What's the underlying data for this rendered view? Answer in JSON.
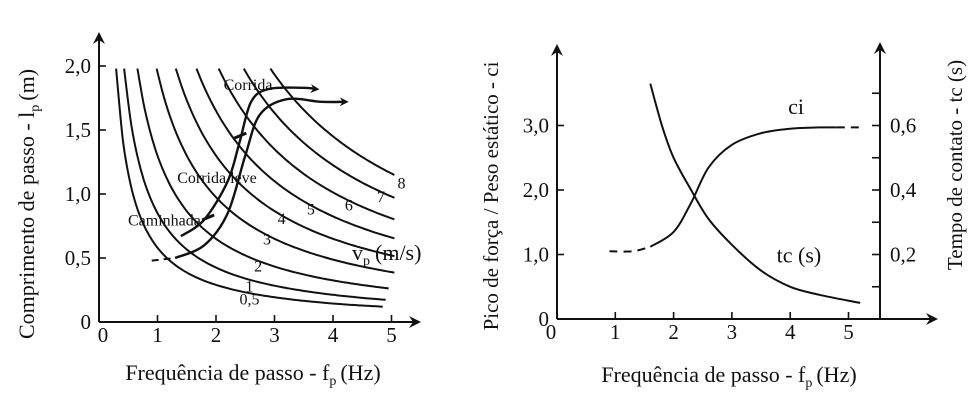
{
  "chart_data": [
    {
      "type": "line",
      "xlabel_main": "Frequência de passo - f",
      "xlabel_sub": "p",
      "xlabel_unit": "(Hz)",
      "ylabel_main": "Comprimento de passo - l",
      "ylabel_sub": "p",
      "ylabel_unit": "(m)",
      "xlim": [
        0,
        5.3
      ],
      "ylim": [
        0,
        2.1
      ],
      "x_ticks": [
        0,
        1,
        2,
        3,
        4,
        5
      ],
      "y_ticks": [
        0,
        0.5,
        1.0,
        1.5,
        2.0
      ],
      "x_tick_labels": [
        "0",
        "1",
        "2",
        "3",
        "4",
        "5"
      ],
      "y_tick_labels": [
        "0",
        "0,5",
        "1,0",
        "1,5",
        "2,0"
      ],
      "speed_legend_main": "v",
      "speed_legend_sub": "p",
      "speed_legend_unit": "(m/s)",
      "speed_curves": [
        {
          "label": "0,5",
          "v": 0.5
        },
        {
          "label": "1",
          "v": 1
        },
        {
          "label": "2",
          "v": 2
        },
        {
          "label": "3",
          "v": 3
        },
        {
          "label": "4",
          "v": 4
        },
        {
          "label": "5",
          "v": 5
        },
        {
          "label": "6",
          "v": 6
        },
        {
          "label": "7",
          "v": 7
        },
        {
          "label": "8",
          "v": 8
        }
      ],
      "gait_band": {
        "lower": [
          [
            1.3,
            0.5
          ],
          [
            1.8,
            0.6
          ],
          [
            2.2,
            0.85
          ],
          [
            2.5,
            1.3
          ],
          [
            2.75,
            1.62
          ],
          [
            3.2,
            1.74
          ],
          [
            3.8,
            1.72
          ],
          [
            4.2,
            1.72
          ]
        ],
        "upper": [
          [
            1.4,
            0.67
          ],
          [
            1.8,
            0.8
          ],
          [
            2.2,
            1.1
          ],
          [
            2.4,
            1.4
          ],
          [
            2.6,
            1.72
          ],
          [
            2.9,
            1.82
          ],
          [
            3.5,
            1.83
          ],
          [
            3.7,
            1.82
          ]
        ],
        "dash": [
          [
            0.9,
            0.48
          ],
          [
            1.3,
            0.5
          ]
        ]
      },
      "regions": [
        {
          "name": "Caminhada",
          "x": 1.35,
          "y": 0.8
        },
        {
          "name": "Corrida leve",
          "x": 1.85,
          "y": 1.15
        },
        {
          "name": "Corrida",
          "x": 2.95,
          "y": 1.86
        }
      ]
    },
    {
      "type": "line",
      "xlabel_main": "Frequência de passo - f",
      "xlabel_sub": "p",
      "xlabel_unit": "(Hz)",
      "ylabel_left": "Pico de força / Peso estático - ci",
      "ylabel_right": "Tempo de contato - tc (s)",
      "xlim": [
        0,
        5.5
      ],
      "ylim_left": [
        0,
        3.8
      ],
      "ylim_right": [
        0,
        0.76
      ],
      "x_ticks": [
        0,
        1,
        2,
        3,
        4,
        5
      ],
      "x_tick_labels": [
        "0",
        "1",
        "2",
        "3",
        "4",
        "5"
      ],
      "left_ticks": [
        0,
        1,
        2,
        3
      ],
      "left_tick_labels": [
        "0",
        "1,0",
        "2,0",
        "3,0"
      ],
      "right_ticks": [
        0.1,
        0.2,
        0.3,
        0.4,
        0.5,
        0.6,
        0.7
      ],
      "right_tick_labels": [
        "0,2",
        "0,4",
        "0,6"
      ],
      "series": [
        {
          "name": "ci",
          "dashed_start": [
            [
              0.9,
              1.05
            ],
            [
              1.3,
              1.05
            ],
            [
              1.6,
              1.12
            ]
          ],
          "x": [
            1.6,
            2.0,
            2.3,
            2.6,
            3.0,
            3.5,
            4.0,
            4.5,
            4.8
          ],
          "y": [
            1.12,
            1.35,
            1.8,
            2.35,
            2.7,
            2.88,
            2.95,
            2.97,
            2.97
          ],
          "dashed_end": [
            [
              4.8,
              2.97
            ],
            [
              5.2,
              2.97
            ]
          ]
        },
        {
          "name": "tc (s)",
          "x": [
            1.6,
            1.8,
            2.0,
            2.3,
            2.6,
            3.0,
            3.5,
            4.0,
            4.5,
            5.2
          ],
          "y": [
            0.73,
            0.6,
            0.5,
            0.4,
            0.31,
            0.23,
            0.15,
            0.1,
            0.075,
            0.05
          ]
        }
      ]
    }
  ]
}
